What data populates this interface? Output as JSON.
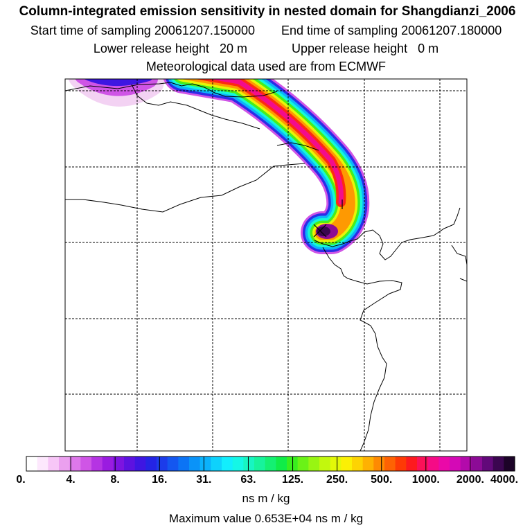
{
  "header": {
    "title": "Column-integrated emission sensitivity in nested domain for Shangdianzi_2006",
    "start_label": "Start time of sampling",
    "start_value": "20061207.150000",
    "end_label": "End time of sampling",
    "end_value": "20061207.180000",
    "lower_label": "Lower release height",
    "lower_value": "20 m",
    "upper_label": "Upper release height",
    "upper_value": "0 m",
    "met_line": "Meteorological data used are from ECMWF"
  },
  "colorbar": {
    "tick_labels": [
      "0.",
      "4.",
      "8.",
      "16.",
      "31.",
      "63.",
      "125.",
      "250.",
      "500.",
      "1000.",
      "2000.",
      "4000."
    ],
    "colors": [
      "#ffffff",
      "#fde8fd",
      "#f7c6f7",
      "#eba0ef",
      "#de78ea",
      "#cf55e6",
      "#b534e3",
      "#9a1ce0",
      "#7d14e0",
      "#5d12e0",
      "#3e16e2",
      "#2424e4",
      "#1c3cea",
      "#1457f0",
      "#0c74f5",
      "#0a93f8",
      "#0bb2fb",
      "#0ed2fc",
      "#12eefd",
      "#15f7e6",
      "#18f5c2",
      "#17f39c",
      "#14f072",
      "#10ec48",
      "#39ee1e",
      "#6af217",
      "#98f512",
      "#c2f80d",
      "#e3f808",
      "#fbf005",
      "#fdd303",
      "#feb102",
      "#fe8a02",
      "#fe6203",
      "#fe3a05",
      "#fd1a1f",
      "#fb1158",
      "#f50b86",
      "#ea09a8",
      "#d409b6",
      "#b30aab",
      "#8c0b96",
      "#62097a",
      "#3b0650",
      "#1c0328"
    ],
    "units": "ns m / kg"
  },
  "max_value_text": "Maximum value  0.653E+04 ns m / kg",
  "map": {
    "receptor_marker": "x-mark",
    "plume_color_low": "#cf55e6",
    "plume_color_high": "#3b0650"
  }
}
